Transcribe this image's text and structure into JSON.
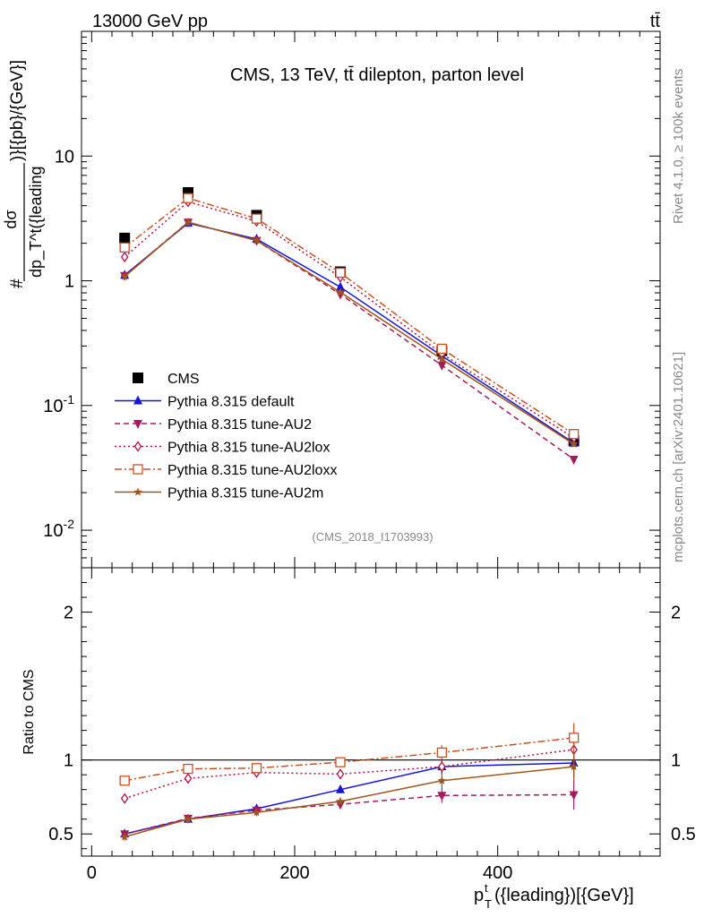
{
  "header": {
    "left": "13000 GeV pp",
    "right": "tt̄"
  },
  "side_text": {
    "rivet": "Rivet 4.1.0, ≥ 100k events",
    "mcplots": "mcplots.cern.ch [arXiv:2401.10621]"
  },
  "chart_data": [
    {
      "type": "line",
      "panel": "main",
      "title": "CMS, 13 TeV, tt̄ dilepton, parton level",
      "analysis_label": "(CMS_2018_I1703993)",
      "ylabel_num": "dσ",
      "ylabel_den": "dp_T^t({leading",
      "ylabel_prefix": "#",
      "ylabel_suffix": ")}[{pb}/{GeV}]",
      "yscale": "log",
      "ylim": [
        0.005,
        100
      ],
      "xlim": [
        -10,
        560
      ],
      "ytick_labels": [
        "10^-2",
        "10^-1",
        "1",
        "10"
      ],
      "x": [
        32.5,
        95,
        162.5,
        245,
        345,
        475
      ],
      "series": [
        {
          "name": "CMS",
          "color": "#000000",
          "marker": "square-filled",
          "dash": "none",
          "values": [
            2.2,
            5.1,
            3.35,
            1.18,
            0.275,
            0.052
          ]
        },
        {
          "name": "Pythia 8.315 default",
          "color": "#1515d6",
          "marker": "triangle-up",
          "dash": "solid",
          "values": [
            1.11,
            2.9,
            2.16,
            0.89,
            0.25,
            0.05
          ]
        },
        {
          "name": "Pythia 8.315 tune-AU2",
          "color": "#a51a5e",
          "marker": "triangle-down",
          "dash": "6,4",
          "values": [
            1.1,
            2.95,
            2.1,
            0.78,
            0.21,
            0.037
          ]
        },
        {
          "name": "Pythia 8.315 tune-AU2lox",
          "color": "#b3104a",
          "marker": "diamond-open",
          "dash": "2,3",
          "values": [
            1.55,
            4.3,
            3.0,
            1.07,
            0.26,
            0.055
          ]
        },
        {
          "name": "Pythia 8.315 tune-AU2loxx",
          "color": "#c8501e",
          "marker": "square-open",
          "dash": "8,3,2,3",
          "values": [
            1.85,
            4.6,
            3.15,
            1.16,
            0.285,
            0.059
          ]
        },
        {
          "name": "Pythia 8.315 tune-AU2m",
          "color": "#a0561a",
          "marker": "star",
          "dash": "solid",
          "values": [
            1.08,
            2.95,
            2.1,
            0.81,
            0.235,
            0.049
          ]
        }
      ]
    },
    {
      "type": "line",
      "panel": "ratio",
      "ylabel": "Ratio to CMS",
      "xlabel": "p_T^t({leading})[{GeV}]",
      "ylim": [
        0.35,
        2.3
      ],
      "xlim": [
        -10,
        560
      ],
      "xtick_labels": [
        "0",
        "200",
        "400"
      ],
      "ytick_labels": [
        "0.5",
        "1",
        "2"
      ],
      "x": [
        32.5,
        95,
        162.5,
        245,
        345,
        475
      ],
      "series": [
        {
          "name": "Pythia 8.315 default",
          "values": [
            0.5,
            0.6,
            0.67,
            0.8,
            0.955,
            0.98
          ]
        },
        {
          "name": "Pythia 8.315 tune-AU2",
          "values": [
            0.5,
            0.605,
            0.66,
            0.7,
            0.76,
            0.765
          ]
        },
        {
          "name": "Pythia 8.315 tune-AU2lox",
          "values": [
            0.74,
            0.875,
            0.915,
            0.905,
            0.955,
            1.07
          ]
        },
        {
          "name": "Pythia 8.315 tune-AU2loxx",
          "values": [
            0.86,
            0.94,
            0.945,
            0.985,
            1.05,
            1.15
          ]
        },
        {
          "name": "Pythia 8.315 tune-AU2m",
          "values": [
            0.48,
            0.6,
            0.645,
            0.72,
            0.86,
            0.955
          ]
        }
      ]
    }
  ]
}
